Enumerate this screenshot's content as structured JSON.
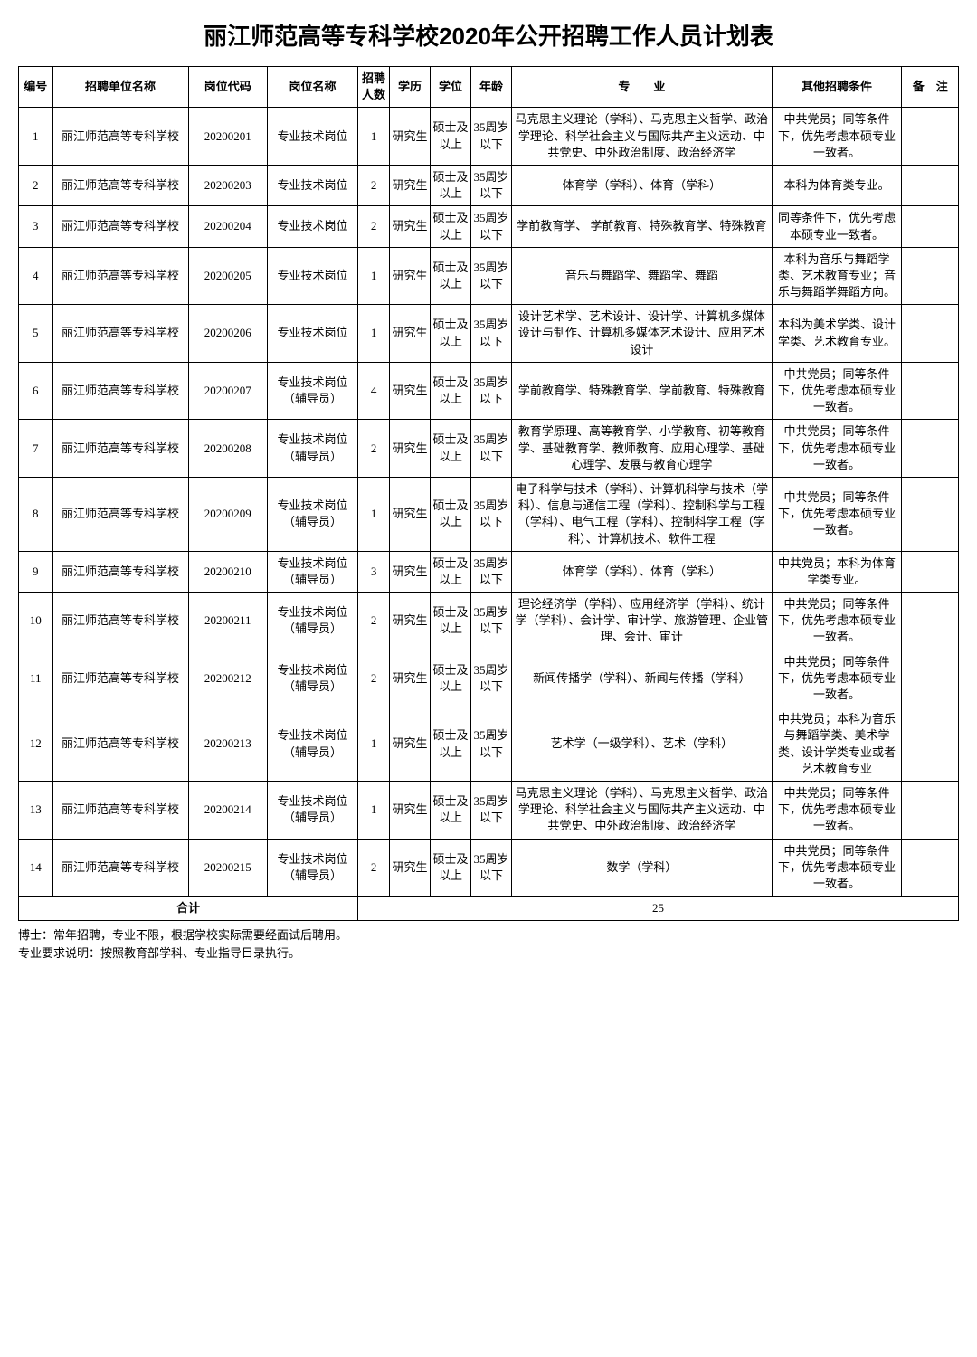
{
  "title": "丽江师范高等专科学校2020年公开招聘工作人员计划表",
  "columns": {
    "idx": "编号",
    "unit": "招聘单位名称",
    "code": "岗位代码",
    "pos": "岗位名称",
    "count": "招聘人数",
    "edu": "学历",
    "degree": "学位",
    "age": "年龄",
    "major": "专　　业",
    "other": "其他招聘条件",
    "note": "备　注"
  },
  "rows": [
    {
      "idx": "1",
      "unit": "丽江师范高等专科学校",
      "code": "20200201",
      "pos": "专业技术岗位",
      "count": "1",
      "edu": "研究生",
      "degree": "硕士及以上",
      "age": "35周岁以下",
      "major": "马克思主义理论（学科）、马克思主义哲学、政治学理论、科学社会主义与国际共产主义运动、中共党史、中外政治制度、政治经济学",
      "other": "中共党员；同等条件下，优先考虑本硕专业一致者。",
      "note": ""
    },
    {
      "idx": "2",
      "unit": "丽江师范高等专科学校",
      "code": "20200203",
      "pos": "专业技术岗位",
      "count": "2",
      "edu": "研究生",
      "degree": "硕士及以上",
      "age": "35周岁以下",
      "major": "体育学（学科）、体育（学科）",
      "other": "本科为体育类专业。",
      "note": ""
    },
    {
      "idx": "3",
      "unit": "丽江师范高等专科学校",
      "code": "20200204",
      "pos": "专业技术岗位",
      "count": "2",
      "edu": "研究生",
      "degree": "硕士及以上",
      "age": "35周岁以下",
      "major": "学前教育学、 学前教育、特殊教育学、特殊教育",
      "other": "同等条件下，优先考虑本硕专业一致者。",
      "note": ""
    },
    {
      "idx": "4",
      "unit": "丽江师范高等专科学校",
      "code": "20200205",
      "pos": "专业技术岗位",
      "count": "1",
      "edu": "研究生",
      "degree": "硕士及以上",
      "age": "35周岁以下",
      "major": "音乐与舞蹈学、舞蹈学、舞蹈",
      "other": "本科为音乐与舞蹈学类、艺术教育专业；音乐与舞蹈学舞蹈方向。",
      "note": ""
    },
    {
      "idx": "5",
      "unit": "丽江师范高等专科学校",
      "code": "20200206",
      "pos": "专业技术岗位",
      "count": "1",
      "edu": "研究生",
      "degree": "硕士及以上",
      "age": "35周岁以下",
      "major": "设计艺术学、艺术设计、设计学、计算机多媒体设计与制作、计算机多媒体艺术设计、应用艺术设计",
      "other": "本科为美术学类、设计学类、艺术教育专业。",
      "note": ""
    },
    {
      "idx": "6",
      "unit": "丽江师范高等专科学校",
      "code": "20200207",
      "pos": "专业技术岗位（辅导员）",
      "count": "4",
      "edu": "研究生",
      "degree": "硕士及以上",
      "age": "35周岁以下",
      "major": "学前教育学、特殊教育学、学前教育、特殊教育",
      "other": "中共党员；同等条件下，优先考虑本硕专业一致者。",
      "note": ""
    },
    {
      "idx": "7",
      "unit": "丽江师范高等专科学校",
      "code": "20200208",
      "pos": "专业技术岗位（辅导员）",
      "count": "2",
      "edu": "研究生",
      "degree": "硕士及以上",
      "age": "35周岁以下",
      "major": "教育学原理、高等教育学、小学教育、初等教育学、基础教育学、教师教育、应用心理学、基础心理学、发展与教育心理学",
      "other": "中共党员；同等条件下，优先考虑本硕专业一致者。",
      "note": ""
    },
    {
      "idx": "8",
      "unit": "丽江师范高等专科学校",
      "code": "20200209",
      "pos": "专业技术岗位（辅导员）",
      "count": "1",
      "edu": "研究生",
      "degree": "硕士及以上",
      "age": "35周岁以下",
      "major": "电子科学与技术（学科）、计算机科学与技术（学科）、信息与通信工程（学科）、控制科学与工程（学科）、电气工程（学科）、控制科学工程（学科）、计算机技术、软件工程",
      "other": "中共党员；同等条件下，优先考虑本硕专业一致者。",
      "note": ""
    },
    {
      "idx": "9",
      "unit": "丽江师范高等专科学校",
      "code": "20200210",
      "pos": "专业技术岗位（辅导员）",
      "count": "3",
      "edu": "研究生",
      "degree": "硕士及以上",
      "age": "35周岁以下",
      "major": "体育学（学科）、体育（学科）",
      "other": "中共党员；本科为体育学类专业。",
      "note": ""
    },
    {
      "idx": "10",
      "unit": "丽江师范高等专科学校",
      "code": "20200211",
      "pos": "专业技术岗位（辅导员）",
      "count": "2",
      "edu": "研究生",
      "degree": "硕士及以上",
      "age": "35周岁以下",
      "major": "理论经济学（学科）、应用经济学（学科）、统计学（学科）、会计学、审计学、旅游管理、企业管理、会计、审计",
      "other": "中共党员；同等条件下，优先考虑本硕专业一致者。",
      "note": ""
    },
    {
      "idx": "11",
      "unit": "丽江师范高等专科学校",
      "code": "20200212",
      "pos": "专业技术岗位（辅导员）",
      "count": "2",
      "edu": "研究生",
      "degree": "硕士及以上",
      "age": "35周岁以下",
      "major": "新闻传播学（学科）、新闻与传播（学科）",
      "other": "中共党员；同等条件下，优先考虑本硕专业一致者。",
      "note": ""
    },
    {
      "idx": "12",
      "unit": "丽江师范高等专科学校",
      "code": "20200213",
      "pos": "专业技术岗位（辅导员）",
      "count": "1",
      "edu": "研究生",
      "degree": "硕士及以上",
      "age": "35周岁以下",
      "major": "艺术学（一级学科）、艺术（学科）",
      "other": "中共党员；本科为音乐与舞蹈学类、美术学类、设计学类专业或者艺术教育专业",
      "note": ""
    },
    {
      "idx": "13",
      "unit": "丽江师范高等专科学校",
      "code": "20200214",
      "pos": "专业技术岗位（辅导员）",
      "count": "1",
      "edu": "研究生",
      "degree": "硕士及以上",
      "age": "35周岁以下",
      "major": "马克思主义理论（学科）、马克思主义哲学、政治学理论、科学社会主义与国际共产主义运动、中共党史、中外政治制度、政治经济学",
      "other": "中共党员；同等条件下，优先考虑本硕专业一致者。",
      "note": ""
    },
    {
      "idx": "14",
      "unit": "丽江师范高等专科学校",
      "code": "20200215",
      "pos": "专业技术岗位（辅导员）",
      "count": "2",
      "edu": "研究生",
      "degree": "硕士及以上",
      "age": "35周岁以下",
      "major": "数学（学科）",
      "other": "中共党员；同等条件下，优先考虑本硕专业一致者。",
      "note": ""
    }
  ],
  "total": {
    "label": "合计",
    "value": "25"
  },
  "footer": {
    "line1": "博士：常年招聘，专业不限，根据学校实际需要经面试后聘用。",
    "line2": "专业要求说明：按照教育部学科、专业指导目录执行。"
  }
}
